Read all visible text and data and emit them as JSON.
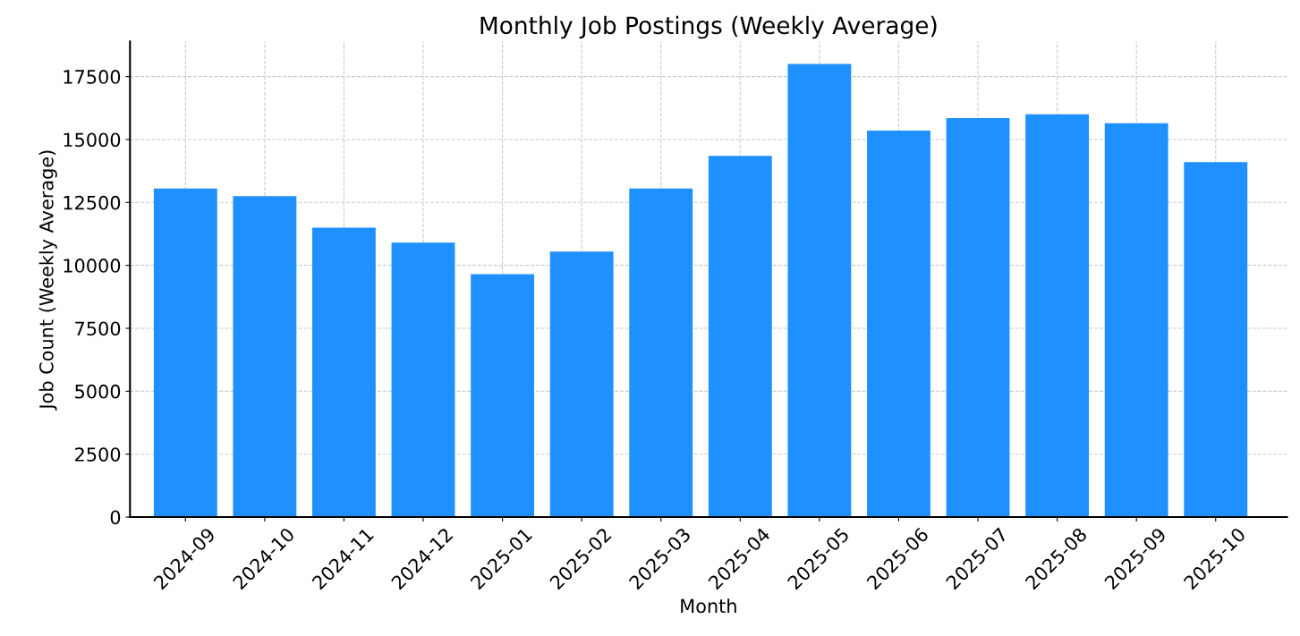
{
  "chart_data": {
    "type": "bar",
    "title": "Monthly Job Postings (Weekly Average)",
    "xlabel": "Month",
    "ylabel": "Job Count (Weekly Average)",
    "categories": [
      "2024-09",
      "2024-10",
      "2024-11",
      "2024-12",
      "2025-01",
      "2025-02",
      "2025-03",
      "2025-04",
      "2025-05",
      "2025-06",
      "2025-07",
      "2025-08",
      "2025-09",
      "2025-10"
    ],
    "values": [
      13050,
      12750,
      11500,
      10900,
      9650,
      10550,
      13050,
      14350,
      18000,
      15350,
      15850,
      16000,
      15650,
      14100
    ],
    "color": "#1e90ff",
    "ylim": [
      0,
      18900
    ],
    "yticks": [
      0,
      2500,
      5000,
      7500,
      10000,
      12500,
      15000,
      17500
    ],
    "grid": true
  }
}
